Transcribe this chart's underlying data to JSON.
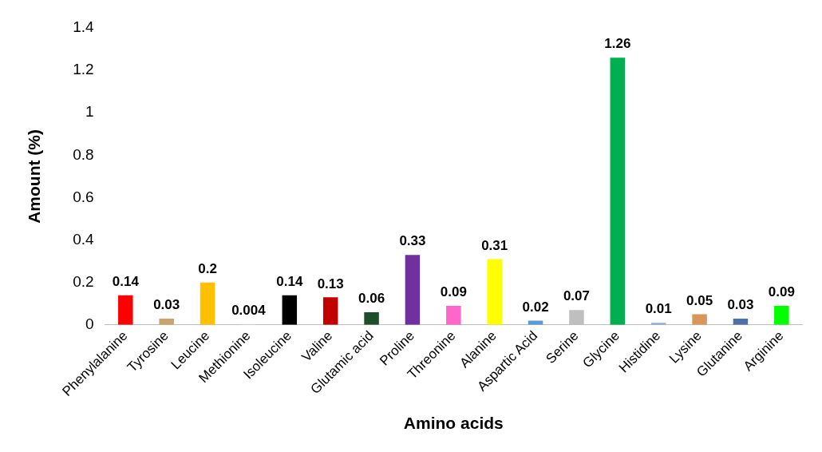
{
  "chart_data": {
    "type": "bar",
    "xlabel": "Amino acids",
    "ylabel": "Amount (%)",
    "categories": [
      "Phenylalanine",
      "Tyrosine",
      "Leucine",
      "Methionine",
      "Isoleucine",
      "Valine",
      "Glutamic acid",
      "Proline",
      "Threonine",
      "Alanine",
      "Aspartic Acid",
      "Serine",
      "Glycine",
      "Histidine",
      "Lysine",
      "Glutanine",
      "Arginine"
    ],
    "values": [
      0.14,
      0.03,
      0.2,
      0.004,
      0.14,
      0.13,
      0.06,
      0.33,
      0.09,
      0.31,
      0.02,
      0.07,
      1.26,
      0.01,
      0.05,
      0.03,
      0.09
    ],
    "colors": [
      "#ff0000",
      "#c9a36b",
      "#ffc000",
      "#d9d9d9",
      "#000000",
      "#c00000",
      "#1e4d2b",
      "#7030a0",
      "#ff66cc",
      "#ffff00",
      "#5b9bd5",
      "#bfbfbf",
      "#00b050",
      "#8faadc",
      "#d9955a",
      "#4f6fa8",
      "#00ff00"
    ],
    "ylim": [
      0,
      1.4
    ],
    "yticks": [
      0,
      0.2,
      0.4,
      0.6,
      0.8,
      1,
      1.2,
      1.4
    ],
    "grid": false,
    "legend": false,
    "data_labels": true
  }
}
